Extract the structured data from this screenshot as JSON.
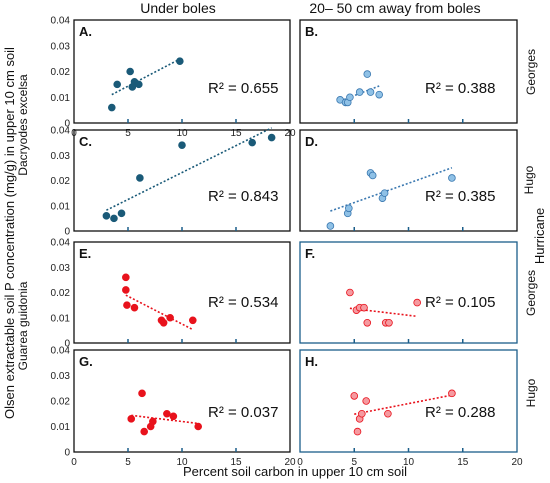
{
  "figure": {
    "col_titles": [
      "Under boles",
      "20– 50 cm away from boles"
    ],
    "y_title": "Olsen extractable soil P concentration (mg/g) in upper 10 cm soil",
    "x_title": "Percent soil carbon in upper 10 cm soil",
    "species_top": "Dacryodes excelsa",
    "species_bottom": "Guarea guidonia",
    "row_labels": [
      "Georges",
      "Hugo",
      "Georges",
      "Hugo"
    ],
    "hurricane_label": "Hurricane"
  },
  "colors": {
    "blue_dark": "#1a5a78",
    "blue_light": "#8fc1e6",
    "red": "#e8121c",
    "red_light": "#f59aa0"
  },
  "chart_data": [
    {
      "type": "scatter",
      "panel": "A.",
      "species": "Dacryodes excelsa",
      "hurricane": "Georges",
      "position": "Under boles",
      "x": [
        3.5,
        4.0,
        5.2,
        5.4,
        5.6,
        6.0,
        9.8
      ],
      "y": [
        0.006,
        0.015,
        0.02,
        0.014,
        0.016,
        0.015,
        0.024
      ],
      "r2_label": "R² = 0.655",
      "xlim": [
        0,
        20
      ],
      "ylim": [
        0,
        0.04
      ],
      "yticks": [
        "0",
        "0.01",
        "0.02",
        "0.03",
        "0.04"
      ],
      "xticks": [
        "0",
        "5",
        "10",
        "15",
        "20"
      ]
    },
    {
      "type": "scatter",
      "panel": "B.",
      "species": "Dacryodes excelsa",
      "hurricane": "Georges",
      "position": "20–50 cm away from boles",
      "x": [
        3.7,
        4.2,
        4.4,
        4.6,
        5.5,
        6.2,
        6.5,
        7.3
      ],
      "y": [
        0.009,
        0.008,
        0.008,
        0.01,
        0.012,
        0.019,
        0.012,
        0.011
      ],
      "r2_label": "R² = 0.388",
      "xlim": [
        0,
        20
      ],
      "ylim": [
        0,
        0.04
      ]
    },
    {
      "type": "scatter",
      "panel": "C.",
      "species": "Dacryodes excelsa",
      "hurricane": "Hugo",
      "position": "Under boles",
      "x": [
        3.0,
        3.7,
        4.4,
        6.1,
        10.0,
        16.5,
        18.3
      ],
      "y": [
        0.006,
        0.005,
        0.007,
        0.021,
        0.034,
        0.035,
        0.037
      ],
      "r2_label": "R² = 0.843",
      "xlim": [
        0,
        20
      ],
      "ylim": [
        0,
        0.04
      ],
      "yticks": [
        "0",
        "0.01",
        "0.02",
        "0.03",
        "0.04"
      ]
    },
    {
      "type": "scatter",
      "panel": "D.",
      "species": "Dacryodes excelsa",
      "hurricane": "Hugo",
      "position": "20–50 cm away from boles",
      "x": [
        2.8,
        4.4,
        4.5,
        6.5,
        6.7,
        7.6,
        7.8,
        14.0
      ],
      "y": [
        0.002,
        0.007,
        0.009,
        0.023,
        0.022,
        0.013,
        0.015,
        0.021
      ],
      "r2_label": "R² = 0.385",
      "xlim": [
        0,
        20
      ],
      "ylim": [
        0,
        0.04
      ]
    },
    {
      "type": "scatter",
      "panel": "E.",
      "species": "Guarea guidonia",
      "hurricane": "Georges",
      "position": "Under boles",
      "x": [
        4.8,
        4.8,
        4.9,
        5.6,
        8.1,
        8.3,
        8.9,
        11.0
      ],
      "y": [
        0.026,
        0.021,
        0.015,
        0.014,
        0.009,
        0.008,
        0.01,
        0.009
      ],
      "r2_label": "R² = 0.534",
      "xlim": [
        0,
        20
      ],
      "ylim": [
        0,
        0.04
      ],
      "yticks": [
        "0",
        "0.01",
        "0.02",
        "0.03",
        "0.04"
      ]
    },
    {
      "type": "scatter",
      "panel": "F.",
      "species": "Guarea guidonia",
      "hurricane": "Georges",
      "position": "20–50 cm away from boles",
      "x": [
        4.6,
        5.2,
        5.5,
        5.9,
        6.2,
        7.9,
        8.2,
        10.8
      ],
      "y": [
        0.02,
        0.013,
        0.014,
        0.014,
        0.008,
        0.008,
        0.008,
        0.016
      ],
      "r2_label": "R² = 0.105",
      "xlim": [
        0,
        20
      ],
      "ylim": [
        0,
        0.04
      ]
    },
    {
      "type": "scatter",
      "panel": "G.",
      "species": "Guarea guidonia",
      "hurricane": "Hugo",
      "position": "Under boles",
      "x": [
        5.3,
        6.3,
        6.5,
        7.1,
        7.3,
        8.6,
        9.2,
        11.5
      ],
      "y": [
        0.013,
        0.023,
        0.008,
        0.01,
        0.012,
        0.015,
        0.014,
        0.01
      ],
      "r2_label": "R² = 0.037",
      "xlim": [
        0,
        20
      ],
      "ylim": [
        0,
        0.04
      ],
      "yticks": [
        "0",
        "0.01",
        "0.02",
        "0.03",
        "0.04"
      ],
      "xticks": [
        "0",
        "5",
        "10",
        "15",
        "20"
      ]
    },
    {
      "type": "scatter",
      "panel": "H.",
      "species": "Guarea guidonia",
      "hurricane": "Hugo",
      "position": "20–50 cm away from boles",
      "x": [
        5.0,
        5.3,
        5.5,
        5.7,
        6.1,
        8.1,
        14.0
      ],
      "y": [
        0.022,
        0.008,
        0.013,
        0.015,
        0.02,
        0.015,
        0.023
      ],
      "r2_label": "R² = 0.288",
      "xlim": [
        0,
        20
      ],
      "ylim": [
        0,
        0.04
      ],
      "xticks": [
        "0",
        "5",
        "10",
        "15",
        "20"
      ]
    }
  ]
}
